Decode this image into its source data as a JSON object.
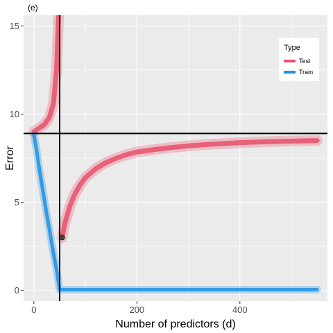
{
  "chart_data": {
    "type": "line",
    "panel_tag": "(e)",
    "title": "",
    "xlabel": "Number of predictors (d)",
    "ylabel": "Error",
    "xlim": [
      -20,
      570
    ],
    "ylim": [
      -0.6,
      15.6
    ],
    "x_ticks": [
      0,
      200,
      400
    ],
    "y_ticks": [
      0,
      5,
      10,
      15
    ],
    "grid": true,
    "background": "#ebebeb",
    "legend": {
      "title": "Type",
      "position": "top-right"
    },
    "reference_lines": {
      "vertical_x": 50,
      "horizontal_y": 8.9
    },
    "highlight_point": {
      "x": 55,
      "y": 3.0
    },
    "series": [
      {
        "name": "Test",
        "color": "#e8506a",
        "points": [
          [
            0,
            9.0
          ],
          [
            10,
            9.2
          ],
          [
            20,
            9.4
          ],
          [
            30,
            9.8
          ],
          [
            38,
            10.6
          ],
          [
            44,
            12.5
          ],
          [
            48,
            15.6
          ],
          [
            55,
            3.0
          ],
          [
            60,
            3.8
          ],
          [
            70,
            4.8
          ],
          [
            80,
            5.5
          ],
          [
            90,
            6.0
          ],
          [
            100,
            6.4
          ],
          [
            120,
            6.9
          ],
          [
            140,
            7.25
          ],
          [
            160,
            7.5
          ],
          [
            180,
            7.7
          ],
          [
            200,
            7.85
          ],
          [
            250,
            8.05
          ],
          [
            300,
            8.2
          ],
          [
            350,
            8.3
          ],
          [
            400,
            8.38
          ],
          [
            450,
            8.43
          ],
          [
            500,
            8.47
          ],
          [
            550,
            8.5
          ]
        ]
      },
      {
        "name": "Train",
        "color": "#1e90e0",
        "points": [
          [
            0,
            8.8
          ],
          [
            5,
            8.0
          ],
          [
            10,
            7.0
          ],
          [
            15,
            6.1
          ],
          [
            20,
            5.2
          ],
          [
            25,
            4.3
          ],
          [
            30,
            3.5
          ],
          [
            35,
            2.6
          ],
          [
            40,
            1.8
          ],
          [
            45,
            1.0
          ],
          [
            48,
            0.4
          ],
          [
            50,
            0.05
          ],
          [
            100,
            0.05
          ],
          [
            200,
            0.05
          ],
          [
            300,
            0.05
          ],
          [
            400,
            0.05
          ],
          [
            500,
            0.05
          ],
          [
            550,
            0.05
          ]
        ]
      }
    ]
  }
}
